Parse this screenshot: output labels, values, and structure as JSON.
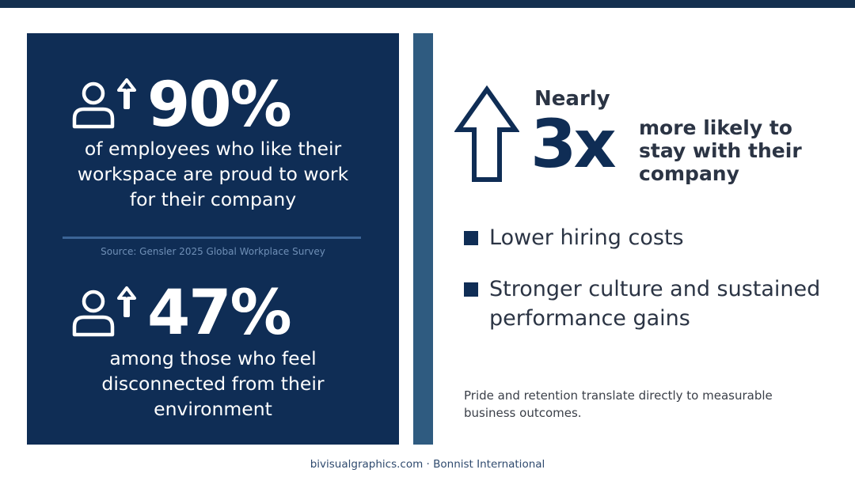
{
  "stats": [
    {
      "value": "90%",
      "caption_lines": [
        "of employees who like their",
        "workspace are proud to work",
        "for their company"
      ],
      "icon": "person-up-arrow-icon"
    },
    {
      "value": "47%",
      "caption_lines": [
        "among those who feel",
        "disconnected from their",
        "environment"
      ],
      "icon": "person-up-arrow-icon"
    }
  ],
  "source": "Source: Gensler 2025 Global Workplace Survey",
  "retention": {
    "qualifier": "Nearly",
    "multiplier": "3x",
    "text_lines": [
      "more likely to",
      "stay with their",
      "company"
    ],
    "icon": "up-arrow-icon"
  },
  "benefits": [
    {
      "lines": [
        "Lower hiring costs"
      ]
    },
    {
      "lines": [
        "Stronger culture and sustained",
        "performance gains"
      ]
    }
  ],
  "footnote_lines": [
    "Pride and retention translate directly to measurable",
    "business outcomes."
  ],
  "footer": "bivisualgraphics.com · Bonnist International",
  "colors": {
    "panel_navy": "#0f2d55",
    "top_bar": "#14304f",
    "accent_bar": "#2f5b80",
    "divider": "#3b6496",
    "dark_text": "#2b3444"
  }
}
